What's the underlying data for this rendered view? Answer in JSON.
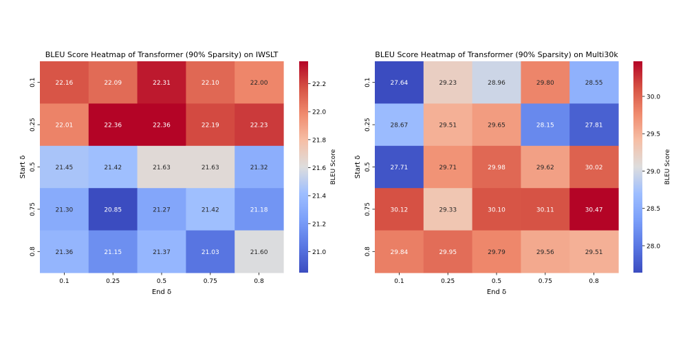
{
  "chart_data": [
    {
      "type": "heatmap",
      "title": "BLEU Score Heatmap of Transformer (90% Sparsity) on IWSLT",
      "xlabel": "End δ",
      "ylabel": "Start δ",
      "x_categories": [
        "0.1",
        "0.25",
        "0.5",
        "0.75",
        "0.8"
      ],
      "y_categories": [
        "0.1",
        "0.25",
        "0.5",
        "0.75",
        "0.8"
      ],
      "values": [
        [
          22.16,
          22.09,
          22.31,
          22.1,
          22.0
        ],
        [
          22.01,
          22.36,
          22.36,
          22.19,
          22.23
        ],
        [
          21.45,
          21.42,
          21.63,
          21.63,
          21.32
        ],
        [
          21.3,
          20.85,
          21.27,
          21.42,
          21.18
        ],
        [
          21.36,
          21.15,
          21.37,
          21.03,
          21.6
        ]
      ],
      "cell_labels": [
        [
          "22.16",
          "22.09",
          "22.31",
          "22.10",
          "22.00"
        ],
        [
          "22.01",
          "22.36",
          "22.36",
          "22.19",
          "22.23"
        ],
        [
          "21.45",
          "21.42",
          "21.63",
          "21.63",
          "21.32"
        ],
        [
          "21.30",
          "20.85",
          "21.27",
          "21.42",
          "21.18"
        ],
        [
          "21.36",
          "21.15",
          "21.37",
          "21.03",
          "21.60"
        ]
      ],
      "colormap": "coolwarm",
      "vmin": 20.85,
      "vmax": 22.36,
      "colorbar_label": "BLEU Score",
      "colorbar_ticks": [
        {
          "value": 21.0,
          "label": "21.0"
        },
        {
          "value": 21.2,
          "label": "21.2"
        },
        {
          "value": 21.4,
          "label": "21.4"
        },
        {
          "value": 21.6,
          "label": "21.6"
        },
        {
          "value": 21.8,
          "label": "21.8"
        },
        {
          "value": 22.0,
          "label": "22.0"
        },
        {
          "value": 22.2,
          "label": "22.2"
        }
      ]
    },
    {
      "type": "heatmap",
      "title": "BLEU Score Heatmap of Transformer (90% Sparsity) on Multi30k",
      "xlabel": "End δ",
      "ylabel": "Start δ",
      "x_categories": [
        "0.1",
        "0.25",
        "0.5",
        "0.75",
        "0.8"
      ],
      "y_categories": [
        "0.1",
        "0.25",
        "0.5",
        "0.75",
        "0.8"
      ],
      "values": [
        [
          27.64,
          29.23,
          28.96,
          29.8,
          28.55
        ],
        [
          28.67,
          29.51,
          29.65,
          28.15,
          27.81
        ],
        [
          27.71,
          29.71,
          29.98,
          29.62,
          30.02
        ],
        [
          30.12,
          29.33,
          30.1,
          30.11,
          30.47
        ],
        [
          29.84,
          29.95,
          29.79,
          29.56,
          29.51
        ]
      ],
      "cell_labels": [
        [
          "27.64",
          "29.23",
          "28.96",
          "29.80",
          "28.55"
        ],
        [
          "28.67",
          "29.51",
          "29.65",
          "28.15",
          "27.81"
        ],
        [
          "27.71",
          "29.71",
          "29.98",
          "29.62",
          "30.02"
        ],
        [
          "30.12",
          "29.33",
          "30.10",
          "30.11",
          "30.47"
        ],
        [
          "29.84",
          "29.95",
          "29.79",
          "29.56",
          "29.51"
        ]
      ],
      "colormap": "coolwarm",
      "vmin": 27.64,
      "vmax": 30.47,
      "colorbar_label": "BLEU Score",
      "colorbar_ticks": [
        {
          "value": 28.0,
          "label": "28.0"
        },
        {
          "value": 28.5,
          "label": "28.5"
        },
        {
          "value": 29.0,
          "label": "29.0"
        },
        {
          "value": 29.5,
          "label": "29.5"
        },
        {
          "value": 30.0,
          "label": "30.0"
        }
      ]
    }
  ]
}
